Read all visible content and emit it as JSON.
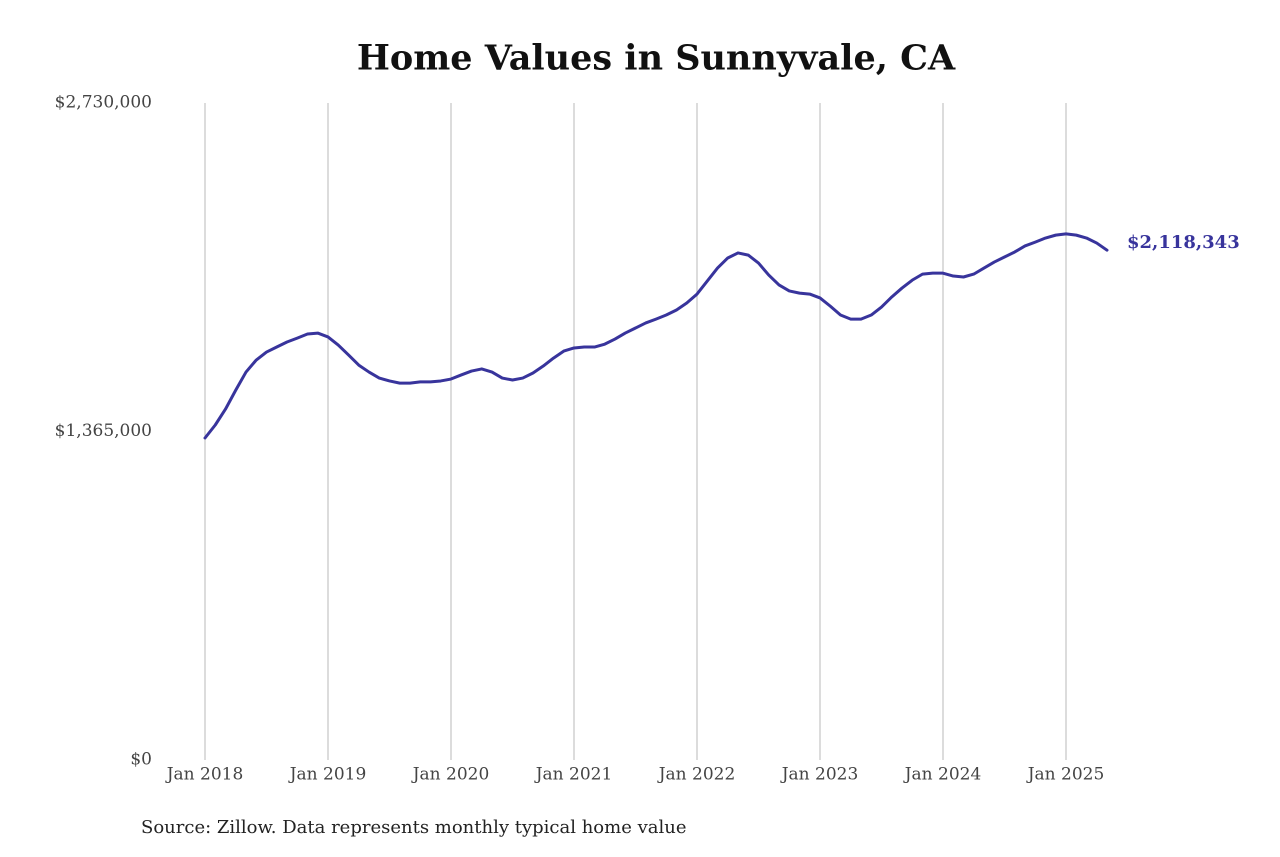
{
  "chart_data": {
    "type": "line",
    "title": "Home Values in Sunnyvale, CA",
    "source": "Source: Zillow. Data represents monthly typical home value",
    "color": "#38349c",
    "grid": "x",
    "x": [
      "2018-01",
      "2018-02",
      "2018-03",
      "2018-04",
      "2018-05",
      "2018-06",
      "2018-07",
      "2018-08",
      "2018-09",
      "2018-10",
      "2018-11",
      "2018-12",
      "2019-01",
      "2019-02",
      "2019-03",
      "2019-04",
      "2019-05",
      "2019-06",
      "2019-07",
      "2019-08",
      "2019-09",
      "2019-10",
      "2019-11",
      "2019-12",
      "2020-01",
      "2020-02",
      "2020-03",
      "2020-04",
      "2020-05",
      "2020-06",
      "2020-07",
      "2020-08",
      "2020-09",
      "2020-10",
      "2020-11",
      "2020-12",
      "2021-01",
      "2021-02",
      "2021-03",
      "2021-04",
      "2021-05",
      "2021-06",
      "2021-07",
      "2021-08",
      "2021-09",
      "2021-10",
      "2021-11",
      "2021-12",
      "2022-01",
      "2022-02",
      "2022-03",
      "2022-04",
      "2022-05",
      "2022-06",
      "2022-07",
      "2022-08",
      "2022-09",
      "2022-10",
      "2022-11",
      "2022-12",
      "2023-01",
      "2023-02",
      "2023-03",
      "2023-04",
      "2023-05",
      "2023-06",
      "2023-07",
      "2023-08",
      "2023-09",
      "2023-10",
      "2023-11",
      "2023-12",
      "2024-01",
      "2024-02",
      "2024-03",
      "2024-04",
      "2024-05",
      "2024-06",
      "2024-07",
      "2024-08",
      "2024-09",
      "2024-10",
      "2024-11",
      "2024-12",
      "2025-01",
      "2025-02",
      "2025-03",
      "2025-04",
      "2025-05"
    ],
    "values": [
      1338000,
      1392000,
      1458000,
      1537000,
      1612000,
      1662000,
      1695000,
      1716000,
      1737000,
      1753000,
      1770000,
      1774000,
      1758000,
      1724000,
      1683000,
      1641000,
      1612000,
      1587000,
      1575000,
      1566000,
      1566000,
      1571000,
      1571000,
      1575000,
      1583000,
      1600000,
      1616000,
      1625000,
      1612000,
      1587000,
      1579000,
      1587000,
      1608000,
      1637000,
      1670000,
      1699000,
      1712000,
      1716000,
      1716000,
      1728000,
      1749000,
      1774000,
      1795000,
      1816000,
      1832000,
      1849000,
      1870000,
      1899000,
      1936000,
      1990000,
      2044000,
      2086000,
      2107000,
      2098000,
      2065000,
      2015000,
      1974000,
      1949000,
      1940000,
      1936000,
      1920000,
      1886000,
      1849000,
      1832000,
      1832000,
      1849000,
      1882000,
      1924000,
      1961000,
      1994000,
      2019000,
      2023000,
      2023000,
      2011000,
      2007000,
      2019000,
      2044000,
      2069000,
      2090000,
      2111000,
      2136000,
      2152000,
      2169000,
      2181000,
      2186000,
      2181000,
      2169000,
      2148000,
      2118343
    ],
    "value_labels": [
      null,
      null,
      null,
      null,
      null,
      null,
      null,
      null,
      null,
      null,
      null,
      null,
      null,
      null,
      null,
      null,
      null,
      null,
      null,
      null,
      null,
      null,
      null,
      null,
      null,
      null,
      null,
      null,
      null,
      null,
      null,
      null,
      null,
      null,
      null,
      null,
      null,
      null,
      null,
      null,
      null,
      null,
      null,
      null,
      null,
      null,
      null,
      null,
      null,
      null,
      null,
      null,
      null,
      null,
      null,
      null,
      null,
      null,
      null,
      null,
      null,
      null,
      null,
      null,
      null,
      null,
      null,
      null,
      null,
      null,
      null,
      null,
      null,
      null,
      null,
      null,
      null,
      null,
      null,
      null,
      null,
      null,
      null,
      null,
      null,
      null,
      null,
      null,
      "$2,118,343"
    ],
    "xlim": [
      "2018-01",
      "2025-05"
    ],
    "xticks": [
      {
        "value": "2018-01",
        "label": "Jan 2018"
      },
      {
        "value": "2019-01",
        "label": "Jan 2019"
      },
      {
        "value": "2020-01",
        "label": "Jan 2020"
      },
      {
        "value": "2021-01",
        "label": "Jan 2021"
      },
      {
        "value": "2022-01",
        "label": "Jan 2022"
      },
      {
        "value": "2023-01",
        "label": "Jan 2023"
      },
      {
        "value": "2024-01",
        "label": "Jan 2024"
      },
      {
        "value": "2025-01",
        "label": "Jan 2025"
      }
    ],
    "ylim": [
      0,
      2730000
    ],
    "yticks": [
      {
        "value": 0,
        "label": "$0"
      },
      {
        "value": 1365000,
        "label": "$1,365,000"
      },
      {
        "value": 2730000,
        "label": "$2,730,000"
      }
    ]
  }
}
